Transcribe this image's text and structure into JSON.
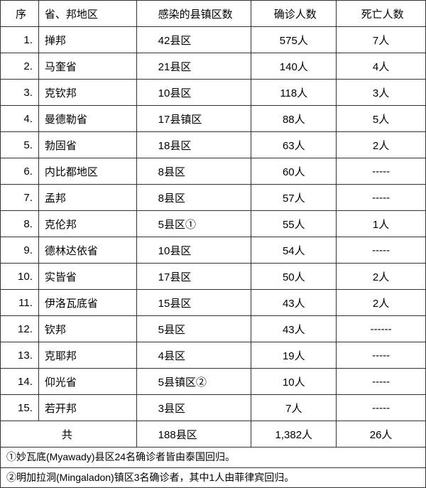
{
  "table": {
    "type": "table",
    "background_color": "#ffffff",
    "border_color": "#333333",
    "text_color": "#000000",
    "font_size": 15,
    "columns": [
      {
        "key": "seq",
        "label": "序",
        "width": "9%",
        "align": "center"
      },
      {
        "key": "region",
        "label": "省、邦地区",
        "width": "23%",
        "align": "left"
      },
      {
        "key": "counties",
        "label": "感染的县镇区数",
        "width": "27%",
        "align": "left"
      },
      {
        "key": "confirmed",
        "label": "确诊人数",
        "width": "20%",
        "align": "center"
      },
      {
        "key": "deaths",
        "label": "死亡人数",
        "width": "21%",
        "align": "center"
      }
    ],
    "rows": [
      {
        "seq": "1.",
        "region": "掸邦",
        "counties": "42县区",
        "confirmed": "575人",
        "deaths": "7人"
      },
      {
        "seq": "2.",
        "region": "马奎省",
        "counties": "21县区",
        "confirmed": "140人",
        "deaths": "4人"
      },
      {
        "seq": "3.",
        "region": "克钦邦",
        "counties": "10县区",
        "confirmed": "118人",
        "deaths": "3人"
      },
      {
        "seq": "4.",
        "region": "曼德勒省",
        "counties": "17县镇区",
        "confirmed": "88人",
        "deaths": "5人"
      },
      {
        "seq": "5.",
        "region": "勃固省",
        "counties": "18县区",
        "confirmed": "63人",
        "deaths": "2人"
      },
      {
        "seq": "6.",
        "region": "内比都地区",
        "counties": "8县区",
        "confirmed": "60人",
        "deaths": "-----"
      },
      {
        "seq": "7.",
        "region": "孟邦",
        "counties": "8县区",
        "confirmed": "57人",
        "deaths": "-----"
      },
      {
        "seq": "8.",
        "region": "克伦邦",
        "counties": "5县区①",
        "confirmed": "55人",
        "deaths": "1人"
      },
      {
        "seq": "9.",
        "region": "德林达依省",
        "counties": "10县区",
        "confirmed": "54人",
        "deaths": "-----"
      },
      {
        "seq": "10.",
        "region": "实皆省",
        "counties": "17县区",
        "confirmed": "50人",
        "deaths": "2人"
      },
      {
        "seq": "11.",
        "region": "伊洛瓦底省",
        "counties": "15县区",
        "confirmed": "43人",
        "deaths": "2人"
      },
      {
        "seq": "12.",
        "region": "钦邦",
        "counties": "5县区",
        "confirmed": "43人",
        "deaths": "------"
      },
      {
        "seq": "13.",
        "region": "克耶邦",
        "counties": "4县区",
        "confirmed": "19人",
        "deaths": "-----"
      },
      {
        "seq": "14.",
        "region": "仰光省",
        "counties": "5县镇区②",
        "confirmed": "10人",
        "deaths": "-----"
      },
      {
        "seq": "15.",
        "region": "若开邦",
        "counties": "3县区",
        "confirmed": "7人",
        "deaths": "-----"
      }
    ],
    "total": {
      "seq": "共",
      "region": "",
      "counties": "188县区",
      "confirmed": "1,382人",
      "deaths": "26人"
    },
    "notes": [
      "①妙瓦底(Myawady)县区24名确诊者皆由泰国回归。",
      "②明加拉洞(Mingaladon)镇区3名确诊者，其中1人由菲律宾回归。"
    ]
  }
}
